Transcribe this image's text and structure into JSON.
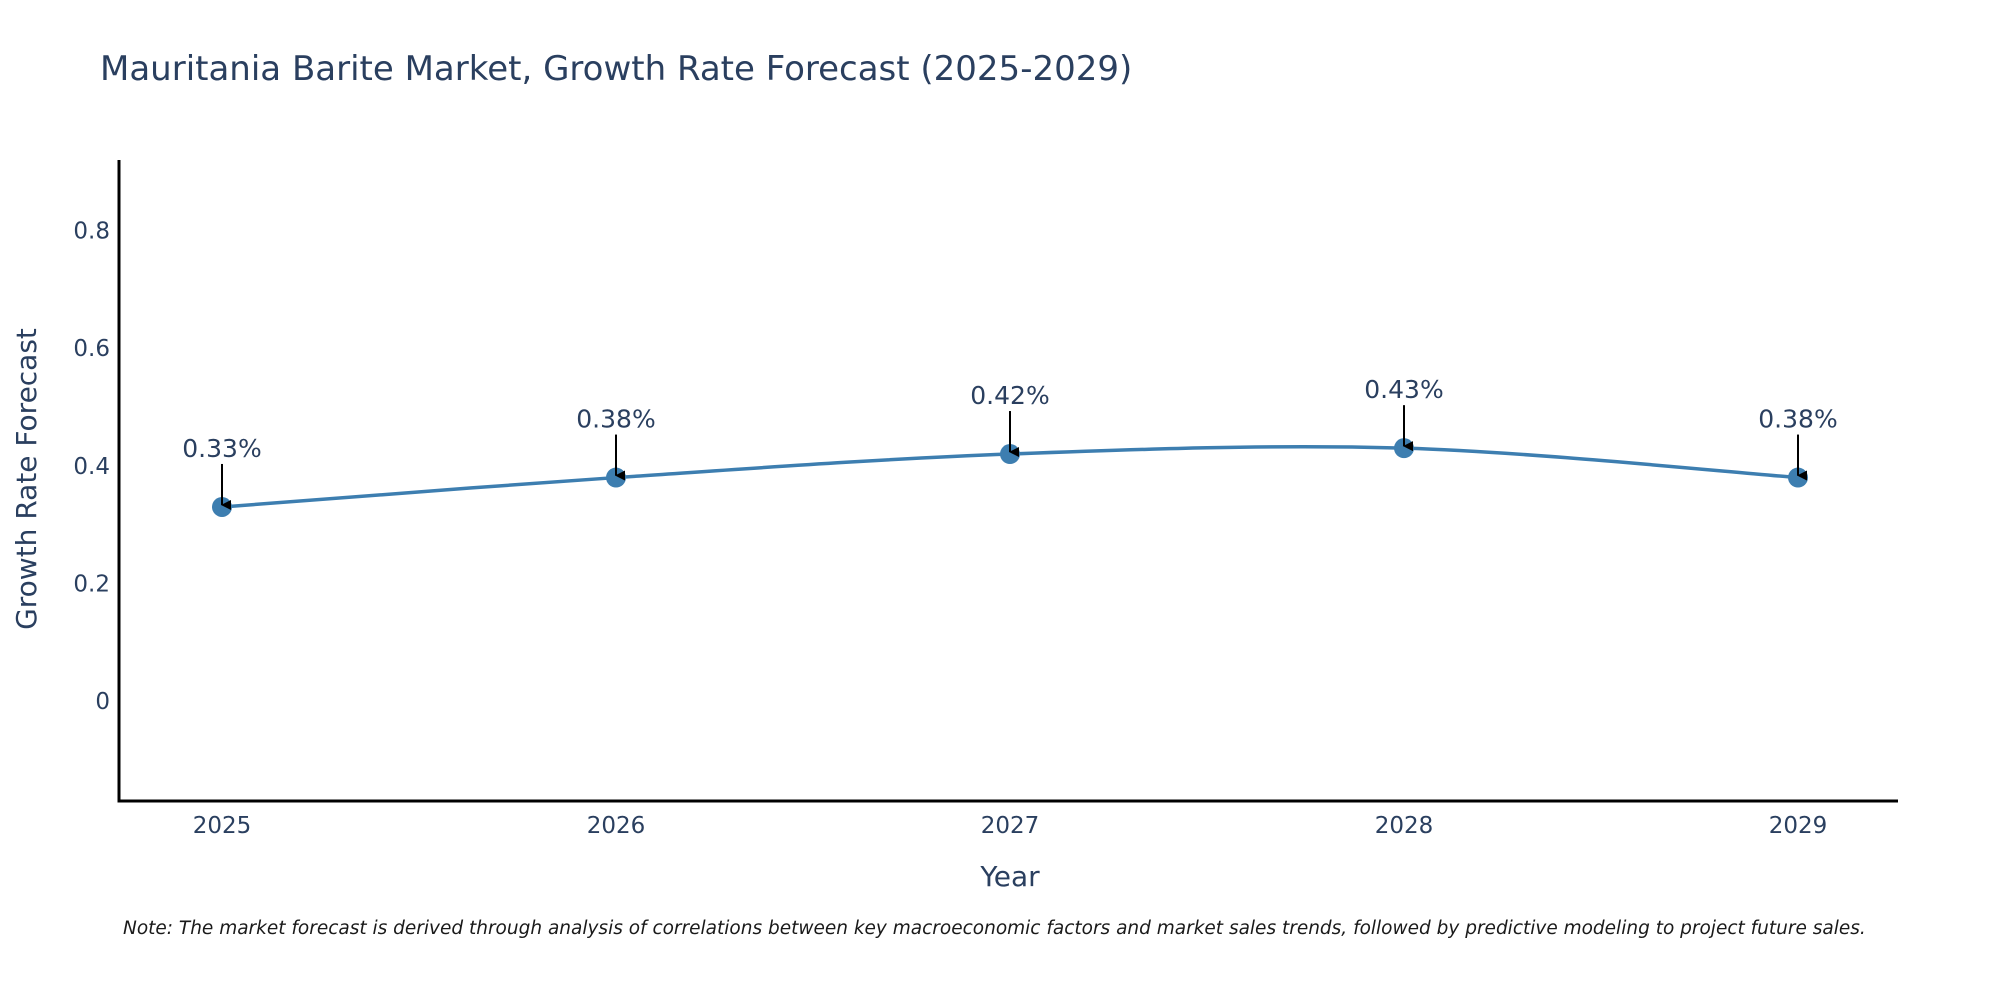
{
  "chart_data": {
    "type": "line",
    "title": "Mauritania Barite Market, Growth Rate Forecast (2025-2029)",
    "xlabel": "Year",
    "ylabel": "Growth Rate Forecast",
    "categories": [
      "2025",
      "2026",
      "2027",
      "2028",
      "2029"
    ],
    "series": [
      {
        "name": "Growth Rate Forecast",
        "values": [
          0.33,
          0.38,
          0.42,
          0.43,
          0.38
        ],
        "labels": [
          "0.33%",
          "0.38%",
          "0.42%",
          "0.43%",
          "0.38%"
        ]
      }
    ],
    "yticks": [
      0,
      0.2,
      0.4,
      0.6,
      0.8
    ],
    "ytick_labels": [
      "0",
      "0.2",
      "0.4",
      "0.6",
      "0.8"
    ],
    "ylim": [
      -0.17,
      0.92
    ],
    "grid": false,
    "colors": {
      "line": "#3d7eb0",
      "marker": "#3d7eb0",
      "axis": "#000000",
      "arrow": "#000000",
      "text": "#2a3f5f"
    }
  },
  "note": "Note: The market forecast is derived through analysis of correlations between key macroeconomic factors and market sales trends, followed by predictive modeling to project future sales."
}
